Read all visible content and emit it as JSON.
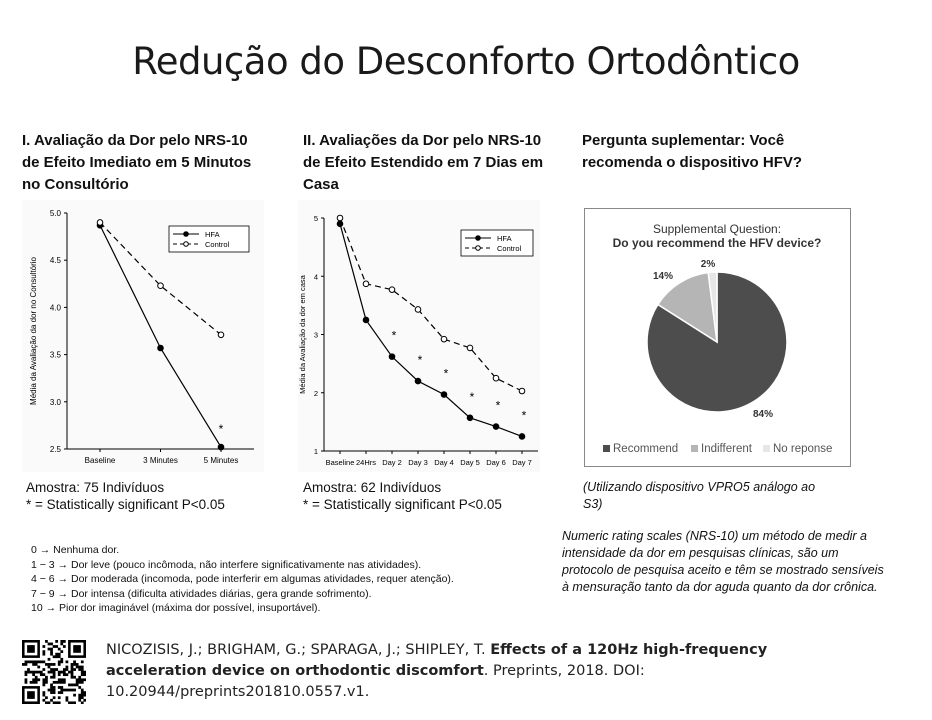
{
  "title": "Redução do Desconforto Ortodôntico",
  "section1": {
    "heading": "I. Avaliação da Dor pelo NRS-10 de Efeito Imediato em 5 Minutos no Consultório",
    "sample": "Amostra: 75 Indivíduos",
    "significance": "* = Statistically significant P<0.05"
  },
  "section2": {
    "heading": "II. Avaliações da Dor pelo NRS-10 de Efeito Estendido em 7 Dias em Casa",
    "sample": "Amostra: 62 Indivíduos",
    "significance": "* = Statistically significant P<0.05"
  },
  "section3": {
    "heading": "Pergunta suplementar: Você recomenda o dispositivo HFV?",
    "device_note": "(Utilizando dispositivo VPRO5 análogo ao S3)",
    "nrs_description": "Numeric rating scales (NRS-10) um método de medir a intensidade da dor em pesquisas clínicas, são um protocolo de pesquisa aceito e têm se mostrado sensíveis à mensuração tanto da dor aguda quanto da dor crônica."
  },
  "scale": [
    "0 → Nenhuma dor.",
    "1 − 3 → Dor leve (pouco incômoda, não interfere significativamente nas atividades).",
    "4 − 6 → Dor moderada (incomoda, pode interferir em algumas atividades, requer atenção).",
    "7 − 9 → Dor intensa (dificulta atividades diárias, gera grande sofrimento).",
    "10 → Pior dor imaginável (máxima dor possível, insuportável)."
  ],
  "reference": {
    "authors": "NICOZISIS, J.; BRIGHAM, G.; SPARAGA, J.; SHIPLEY, T.",
    "title": "Effects of a 120Hz high-frequency acceleration device on orthodontic discomfort",
    "rest": ". Preprints, 2018. DOI: 10.20944/preprints201810.0557.v1."
  },
  "colors": {
    "pie_recommend": "#4d4d4d",
    "pie_indifferent": "#b5b5b5",
    "pie_noresponse": "#e6e6e6"
  },
  "chart_data": [
    {
      "type": "line",
      "title": "",
      "ylabel": "Média da Avaliação da dor no Consultório",
      "xlabel": "",
      "categories": [
        "Baseline",
        "3 Minutes",
        "5 Minutes"
      ],
      "ylim": [
        2.5,
        5.0
      ],
      "yticks": [
        "2.5",
        "3.0",
        "3.5",
        "4.0",
        "4.5",
        "5.0"
      ],
      "series": [
        {
          "name": "HFA",
          "values": [
            4.87,
            3.57,
            2.52
          ],
          "style": "solid-filled"
        },
        {
          "name": "Control",
          "values": [
            4.9,
            4.23,
            3.71
          ],
          "style": "dashed-open"
        }
      ],
      "significant": [
        "",
        "",
        "*"
      ],
      "legend": "top-right"
    },
    {
      "type": "line",
      "title": "",
      "ylabel": "Média da Avaliação da dor em casa",
      "xlabel": "",
      "categories": [
        "Baseline",
        "24Hrs",
        "Day 2",
        "Day 3",
        "Day 4",
        "Day 5",
        "Day 6",
        "Day 7"
      ],
      "ylim": [
        1,
        5
      ],
      "yticks": [
        "1",
        "2",
        "3",
        "4",
        "5"
      ],
      "series": [
        {
          "name": "HFA",
          "values": [
            4.9,
            3.25,
            2.62,
            2.2,
            1.97,
            1.57,
            1.42,
            1.25
          ],
          "style": "solid-filled"
        },
        {
          "name": "Control",
          "values": [
            5.0,
            3.87,
            3.77,
            3.43,
            2.92,
            2.77,
            2.25,
            2.03
          ],
          "style": "dashed-open"
        }
      ],
      "significant": [
        "",
        "",
        "*",
        "*",
        "*",
        "*",
        "*",
        "*"
      ],
      "legend": "top-right"
    },
    {
      "type": "pie",
      "title": "Supplemental Question:",
      "subtitle": "Do you recommend the HFV device?",
      "categories": [
        "Recommend",
        "Indifferent",
        "No reponse"
      ],
      "values": [
        84,
        14,
        2
      ],
      "value_labels": [
        "84%",
        "14%",
        "2%"
      ],
      "legend": "bottom"
    }
  ]
}
